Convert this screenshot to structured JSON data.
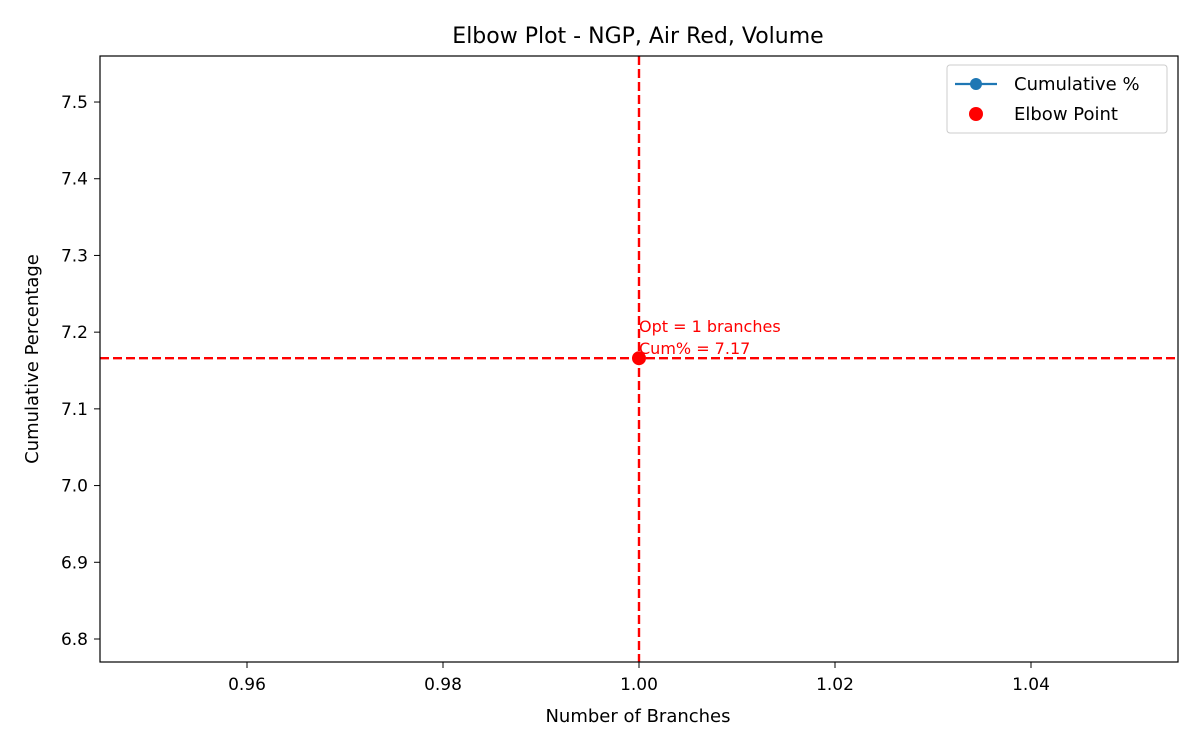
{
  "chart_data": {
    "type": "line",
    "title": "Elbow Plot - NGP, Air Red, Volume",
    "xlabel": "Number of Branches",
    "ylabel": "Cumulative Percentage",
    "xlim": [
      0.945,
      1.055
    ],
    "ylim": [
      6.77,
      7.56
    ],
    "x_ticks": [
      0.96,
      0.98,
      1.0,
      1.02,
      1.04
    ],
    "x_tick_labels": [
      "0.96",
      "0.98",
      "1.00",
      "1.02",
      "1.04"
    ],
    "y_ticks": [
      6.8,
      6.9,
      7.0,
      7.1,
      7.2,
      7.3,
      7.4,
      7.5
    ],
    "y_tick_labels": [
      "6.8",
      "6.9",
      "7.0",
      "7.1",
      "7.2",
      "7.3",
      "7.4",
      "7.5"
    ],
    "grid": false,
    "legend_position": "top-right",
    "series": [
      {
        "name": "Cumulative %",
        "type": "line",
        "x": [
          1
        ],
        "y": [
          7.166
        ],
        "color": "#1f77b4"
      },
      {
        "name": "Elbow Point",
        "type": "scatter",
        "x": [
          1
        ],
        "y": [
          7.166
        ],
        "color": "#ff0000"
      }
    ],
    "reference_lines": {
      "vertical_x": 1.0,
      "horizontal_y": 7.166,
      "color": "#ff0000"
    },
    "annotation": {
      "x": 1.0,
      "y": 7.166,
      "lines": [
        "Opt = 1 branches",
        "Cum% = 7.17"
      ],
      "color": "#ff0000"
    }
  }
}
